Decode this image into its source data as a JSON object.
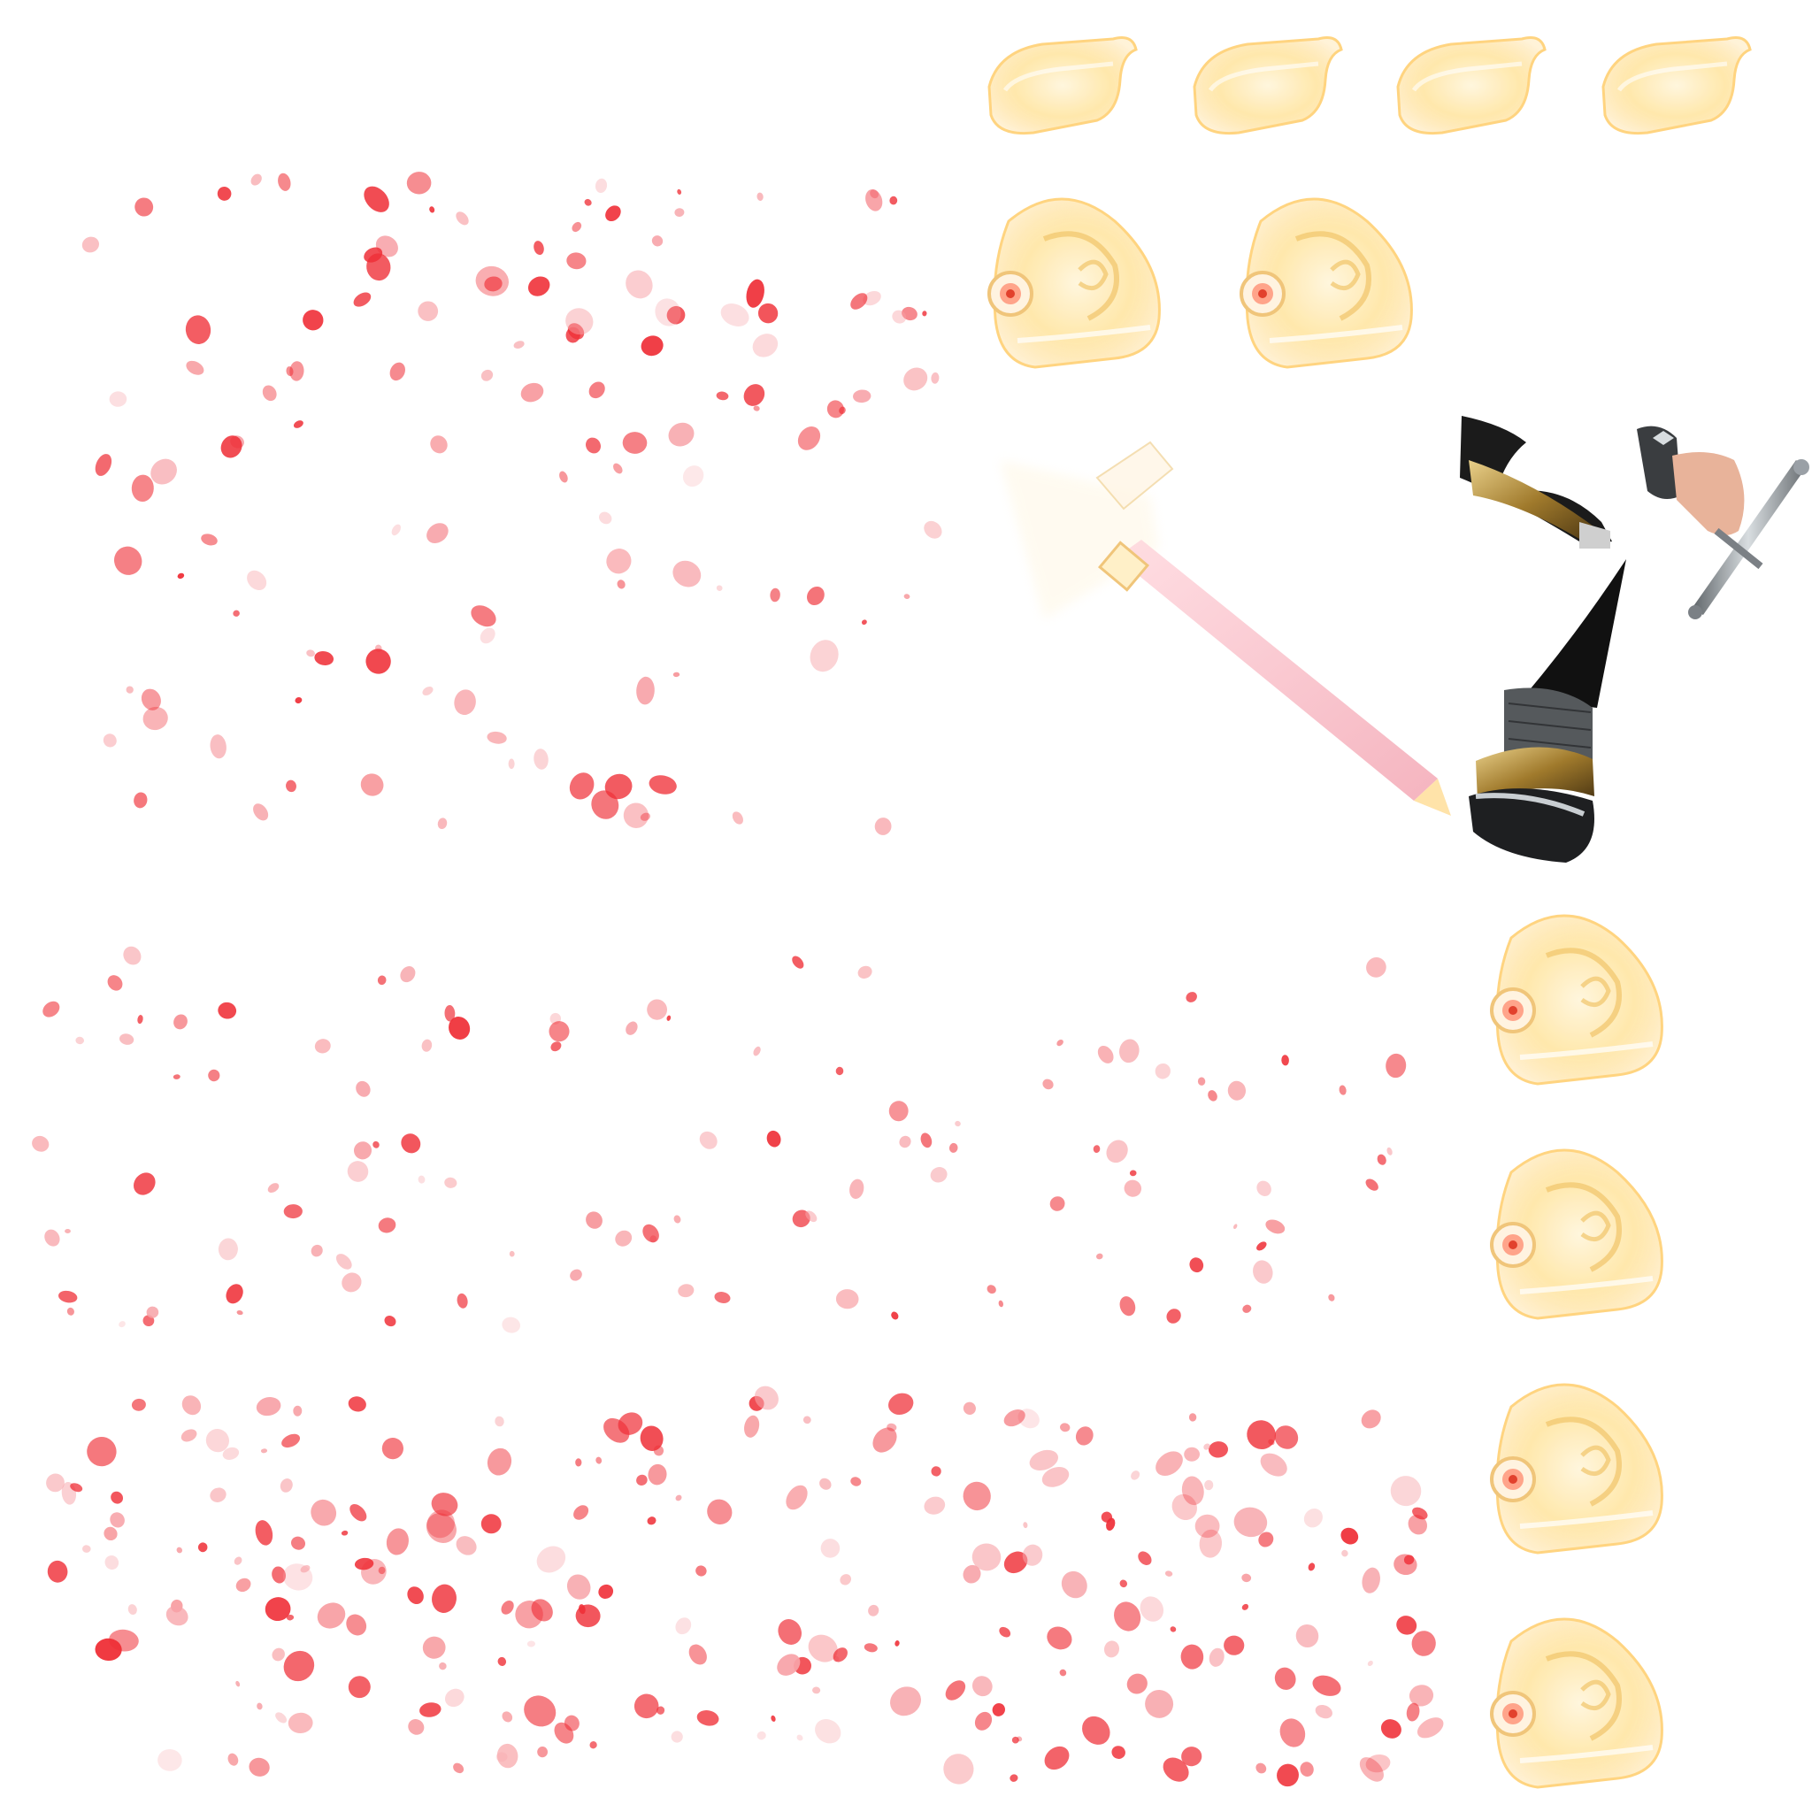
{
  "sheet": {
    "background": "#ffffff",
    "petal_color": "#ef2f37",
    "petal_color_light": "#f7a3a8",
    "glow_color": "#ffe6a8",
    "gold_color": "#c9a24a",
    "dark_color": "#1b1b1b",
    "steel_color": "#9aa0a6"
  },
  "sprites": {
    "gold_bracer_icon": "gold-bracer-icon",
    "gold_pauldron_icon": "gold-pauldron-icon",
    "light_blade_icon": "light-blade-icon",
    "dark_gauntlet_icon": "dark-gauntlet-icon",
    "hand_dagger_icon": "hand-dagger-icon",
    "armored_arm_icon": "armored-arm-icon"
  },
  "counts": {
    "gold_bracers": 4,
    "gold_pauldrons": 6,
    "petal_regions": 4
  }
}
